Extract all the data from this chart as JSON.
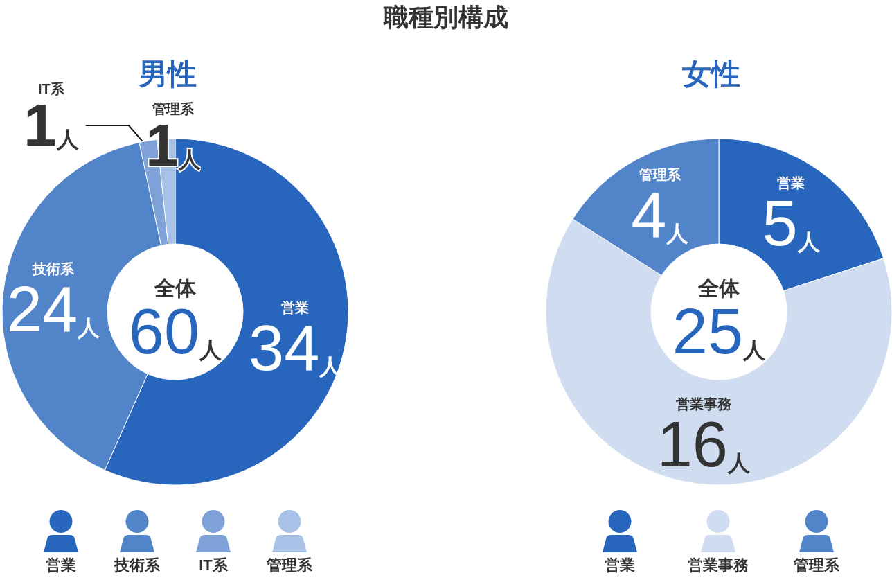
{
  "chart_data": [
    {
      "type": "donut",
      "title": "職種別構成",
      "subtitle": "男性",
      "categories": [
        "営業",
        "技術系",
        "IT系",
        "管理系"
      ],
      "values": [
        34,
        24,
        1,
        1
      ],
      "colors": [
        "#2866bd",
        "#5284ca",
        "#7fa3d8",
        "#a8c1e6"
      ],
      "value_labels": [
        "34人",
        "24人",
        "1人",
        "1人"
      ],
      "annotations": [
        "全体",
        "60人"
      ],
      "legend": "bottom"
    },
    {
      "type": "donut",
      "subtitle": "女性",
      "categories": [
        "営業",
        "営業事務",
        "管理系"
      ],
      "values": [
        5,
        16,
        4
      ],
      "colors": [
        "#2866bd",
        "#d0ddf0",
        "#5284ca"
      ],
      "value_labels": [
        "5人",
        "16人",
        "4人"
      ],
      "annotations": [
        "全体",
        "25人"
      ],
      "legend": "bottom"
    }
  ]
}
